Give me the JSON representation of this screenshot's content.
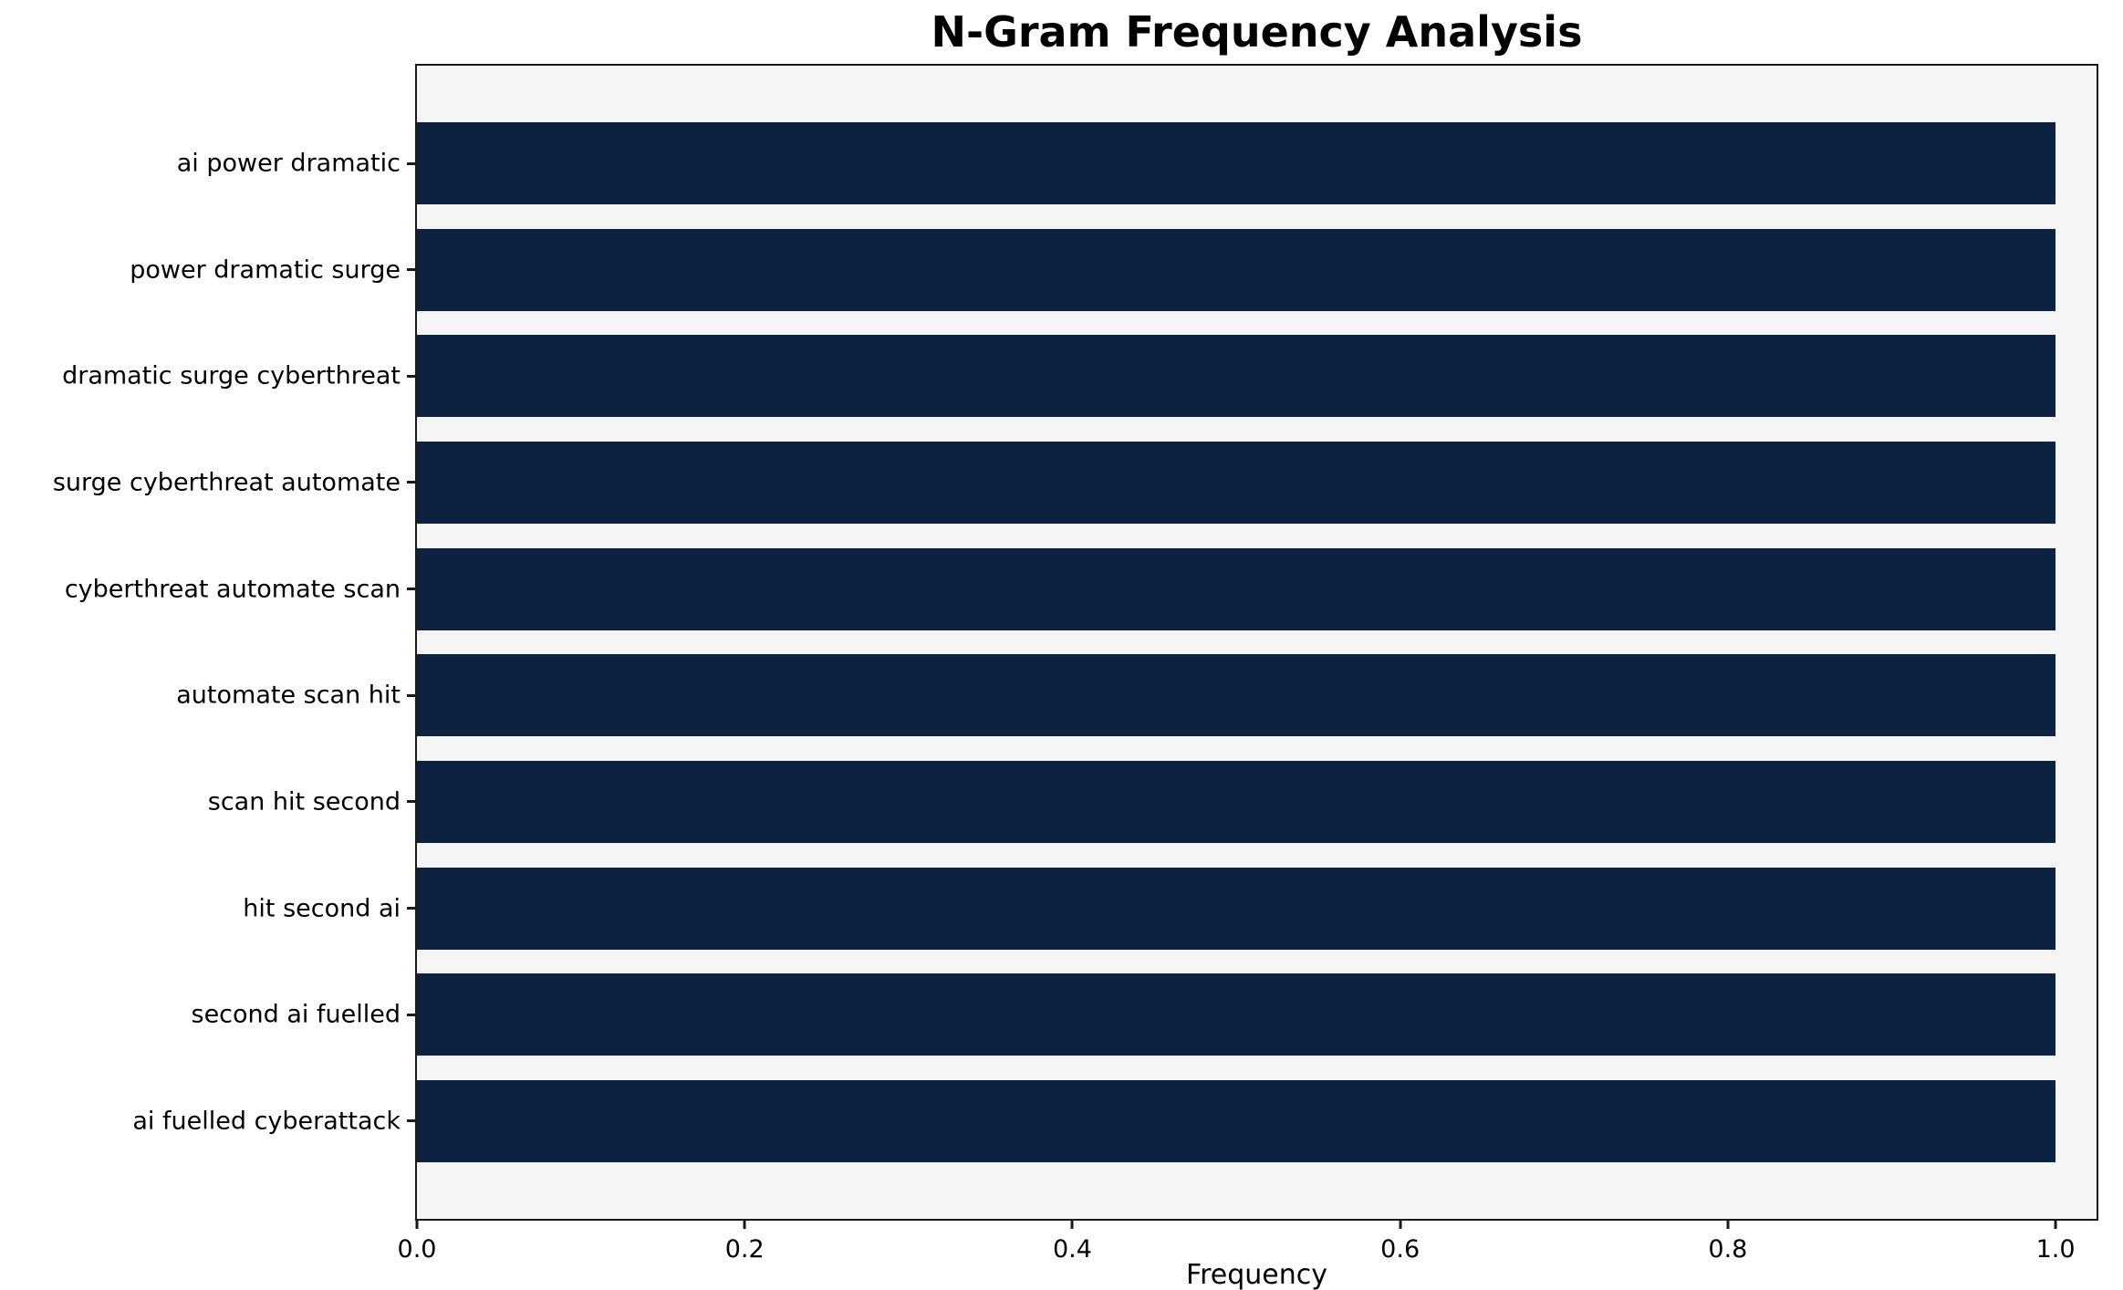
{
  "chart_data": {
    "type": "bar",
    "orientation": "horizontal",
    "title": "N-Gram Frequency Analysis",
    "xlabel": "Frequency",
    "ylabel": "",
    "categories": [
      "ai power dramatic",
      "power dramatic surge",
      "dramatic surge cyberthreat",
      "surge cyberthreat automate",
      "cyberthreat automate scan",
      "automate scan hit",
      "scan hit second",
      "hit second ai",
      "second ai fuelled",
      "ai fuelled cyberattack"
    ],
    "values": [
      1.0,
      1.0,
      1.0,
      1.0,
      1.0,
      1.0,
      1.0,
      1.0,
      1.0,
      1.0
    ],
    "xlim": [
      0,
      1.025
    ],
    "xticks": [
      "0.0",
      "0.2",
      "0.4",
      "0.6",
      "0.8",
      "1.0"
    ],
    "grid": false,
    "legend": null,
    "colors": {
      "bar": "#0d2240",
      "plot_background": "#f5f5f5",
      "figure_background": "#ffffff",
      "axis": "#1a1a1a",
      "text": "#000000"
    }
  }
}
